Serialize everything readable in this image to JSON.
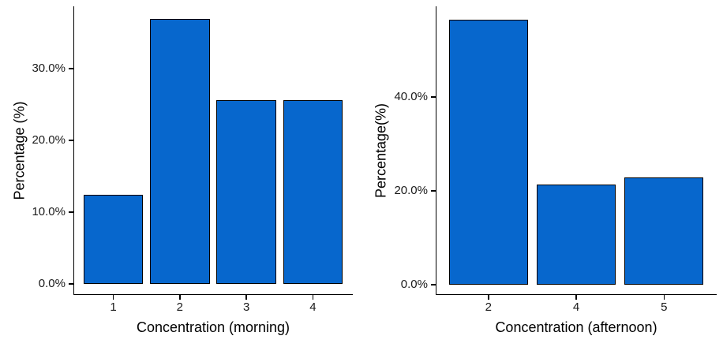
{
  "figure": {
    "background": "#ffffff",
    "panel_border_color": "#000000",
    "text_color": "#1a1a1a"
  },
  "chart_data": [
    {
      "type": "bar",
      "title": "",
      "categories": [
        "1",
        "2",
        "3",
        "4"
      ],
      "values": [
        12.4,
        36.9,
        25.6,
        25.6
      ],
      "xlabel": "Concentration (morning)",
      "ylabel": "Percentage (%)",
      "yticks": [
        {
          "value": 0,
          "label": "0.0%"
        },
        {
          "value": 10,
          "label": "10.0%"
        },
        {
          "value": 20,
          "label": "20.0%"
        },
        {
          "value": 30,
          "label": "30.0%"
        }
      ],
      "ylim": [
        -1.55,
        38.7
      ],
      "grid": false,
      "legend": "none",
      "bar_fill": "#0767cd",
      "bar_border": "#000000"
    },
    {
      "type": "bar",
      "title": "",
      "categories": [
        "2",
        "4",
        "5"
      ],
      "values": [
        56.4,
        21.3,
        22.9
      ],
      "xlabel": "Concentration (afternoon)",
      "ylabel": "Percentage(%)",
      "yticks": [
        {
          "value": 0,
          "label": "0.0%"
        },
        {
          "value": 20,
          "label": "20.0%"
        },
        {
          "value": 40,
          "label": "40.0%"
        }
      ],
      "ylim": [
        -2.2,
        59.3
      ],
      "grid": false,
      "legend": "none",
      "bar_fill": "#0767cd",
      "bar_border": "#000000"
    }
  ]
}
